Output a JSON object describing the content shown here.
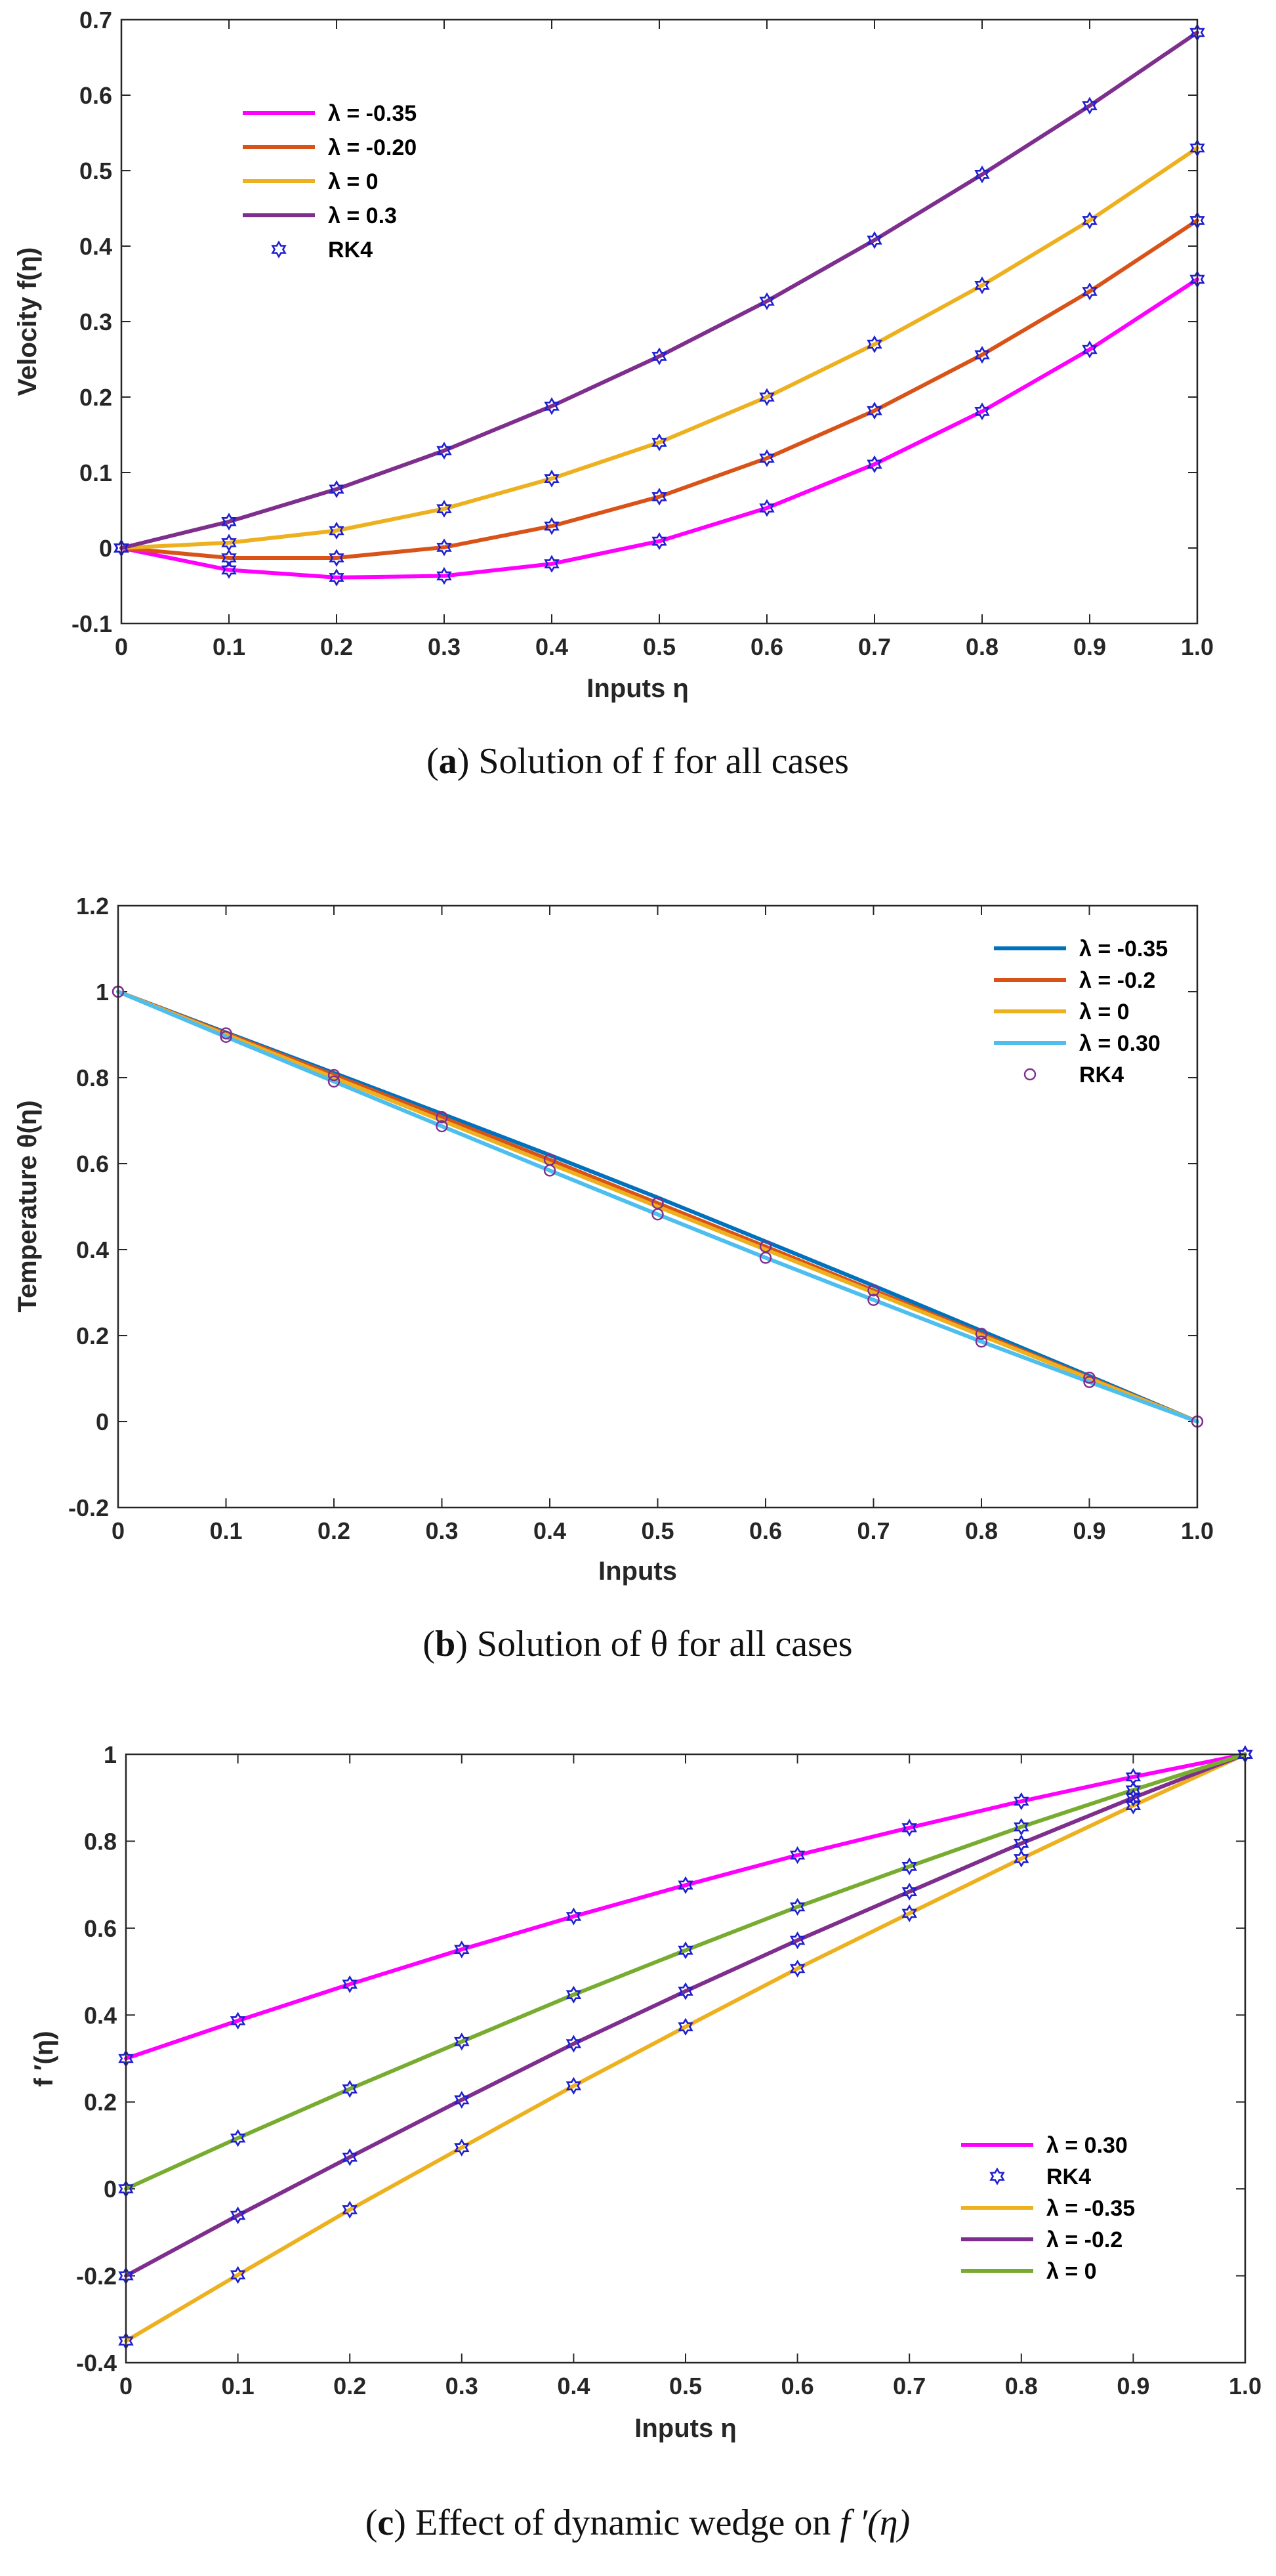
{
  "chart_data": [
    {
      "type": "line",
      "caption": {
        "tag": "a",
        "text": "Solution of f for all cases"
      },
      "xlabel": "Inputs η",
      "ylabel": "Velocity f(η)",
      "xlim": [
        0,
        1
      ],
      "ylim": [
        -0.1,
        0.7
      ],
      "x_ticks": [
        0,
        0.1,
        0.2,
        0.3,
        0.4,
        0.5,
        0.6,
        0.7,
        0.8,
        0.9,
        1.0
      ],
      "x_tick_labels": [
        "0",
        "0.1",
        "0.2",
        "0.3",
        "0.4",
        "0.5",
        "0.6",
        "0.7",
        "0.8",
        "0.9",
        "1.0"
      ],
      "y_ticks": [
        -0.1,
        0,
        0.1,
        0.2,
        0.3,
        0.4,
        0.5,
        0.6,
        0.7
      ],
      "y_tick_labels": [
        "-0.1",
        "0",
        "0.1",
        "0.2",
        "0.3",
        "0.4",
        "0.5",
        "0.6",
        "0.7"
      ],
      "x": [
        0,
        0.1,
        0.2,
        0.3,
        0.4,
        0.5,
        0.6,
        0.7,
        0.8,
        0.9,
        1.0
      ],
      "series": [
        {
          "name": "λ = -0.35",
          "color": "#ff00ff",
          "values": [
            0,
            -0.029,
            -0.039,
            -0.037,
            -0.021,
            0.009,
            0.053,
            0.111,
            0.181,
            0.263,
            0.356
          ]
        },
        {
          "name": "λ = -0.20",
          "color": "#d95319",
          "values": [
            0,
            -0.013,
            -0.013,
            0.001,
            0.029,
            0.068,
            0.119,
            0.182,
            0.256,
            0.34,
            0.434
          ]
        },
        {
          "name": "λ = 0",
          "color": "#edb120",
          "values": [
            0,
            0.007,
            0.023,
            0.052,
            0.092,
            0.14,
            0.2,
            0.27,
            0.348,
            0.434,
            0.53
          ]
        },
        {
          "name": "λ = 0.3",
          "color": "#7e2f8e",
          "values": [
            0,
            0.035,
            0.078,
            0.129,
            0.188,
            0.254,
            0.327,
            0.408,
            0.495,
            0.586,
            0.683
          ]
        }
      ],
      "markers": {
        "name": "RK4",
        "symbol": "hexagram",
        "color": "#1f1fd0",
        "on_series": [
          0,
          1,
          2,
          3
        ]
      },
      "legend": {
        "position": "top-left",
        "order": [
          0,
          1,
          2,
          3,
          "RK4"
        ]
      }
    },
    {
      "type": "line",
      "caption": {
        "tag": "b",
        "text": "Solution of θ for all cases"
      },
      "xlabel": "Inputs",
      "ylabel": "Temperature θ(η)",
      "xlim": [
        0,
        1
      ],
      "ylim": [
        -0.2,
        1.2
      ],
      "x_ticks": [
        0,
        0.1,
        0.2,
        0.3,
        0.4,
        0.5,
        0.6,
        0.7,
        0.8,
        0.9,
        1.0
      ],
      "x_tick_labels": [
        "0",
        "0.1",
        "0.2",
        "0.3",
        "0.4",
        "0.5",
        "0.6",
        "0.7",
        "0.8",
        "0.9",
        "1.0"
      ],
      "y_ticks": [
        -0.2,
        0,
        0.2,
        0.4,
        0.6,
        0.8,
        1,
        1.2
      ],
      "y_tick_labels": [
        "-0.2",
        "0",
        "0.2",
        "0.4",
        "0.6",
        "0.8",
        "1",
        "1.2"
      ],
      "x": [
        0,
        0.1,
        0.2,
        0.3,
        0.4,
        0.5,
        0.6,
        0.7,
        0.8,
        0.9,
        1.0
      ],
      "series": [
        {
          "name": "λ = -0.35",
          "color": "#0072bd",
          "values": [
            1,
            0.905,
            0.811,
            0.716,
            0.62,
            0.521,
            0.419,
            0.316,
            0.211,
            0.106,
            0
          ]
        },
        {
          "name": "λ = -0.2",
          "color": "#d95319",
          "values": [
            1,
            0.903,
            0.806,
            0.708,
            0.609,
            0.508,
            0.407,
            0.305,
            0.204,
            0.102,
            0
          ]
        },
        {
          "name": "λ = 0",
          "color": "#edb120",
          "values": [
            1,
            0.9,
            0.8,
            0.7,
            0.6,
            0.5,
            0.4,
            0.3,
            0.2,
            0.1,
            0
          ]
        },
        {
          "name": "λ = 0.30",
          "color": "#4dbeee",
          "values": [
            1,
            0.895,
            0.791,
            0.687,
            0.584,
            0.482,
            0.381,
            0.283,
            0.186,
            0.092,
            0
          ]
        }
      ],
      "markers": {
        "name": "RK4",
        "symbol": "circle",
        "color": "#7e2f8e",
        "on_series": [
          1,
          3
        ]
      },
      "legend": {
        "position": "top-right",
        "order": [
          0,
          1,
          2,
          3,
          "RK4"
        ]
      }
    },
    {
      "type": "line",
      "caption": {
        "tag": "c",
        "text": "Effect of dynamic wedge on",
        "math": "f ′(η)"
      },
      "xlabel": "Inputs η",
      "ylabel": "f ′(η)",
      "xlim": [
        0,
        1
      ],
      "ylim": [
        -0.4,
        1
      ],
      "x_ticks": [
        0,
        0.1,
        0.2,
        0.3,
        0.4,
        0.5,
        0.6,
        0.7,
        0.8,
        0.9,
        1.0
      ],
      "x_tick_labels": [
        "0",
        "0.1",
        "0.2",
        "0.3",
        "0.4",
        "0.5",
        "0.6",
        "0.7",
        "0.8",
        "0.9",
        "1.0"
      ],
      "y_ticks": [
        -0.4,
        -0.2,
        0,
        0.2,
        0.4,
        0.6,
        0.8,
        1
      ],
      "y_tick_labels": [
        "-0.4",
        "-0.2",
        "0",
        "0.2",
        "0.4",
        "0.6",
        "0.8",
        "1"
      ],
      "x": [
        0,
        0.1,
        0.2,
        0.3,
        0.4,
        0.5,
        0.6,
        0.7,
        0.8,
        0.9,
        1.0
      ],
      "series": [
        {
          "name": "λ = 0.30",
          "color": "#ff00ff",
          "values": [
            0.3,
            0.387,
            0.471,
            0.551,
            0.627,
            0.699,
            0.768,
            0.831,
            0.892,
            0.948,
            1.0
          ]
        },
        {
          "name": "λ = -0.35",
          "color": "#edb120",
          "values": [
            -0.35,
            -0.198,
            -0.048,
            0.095,
            0.237,
            0.373,
            0.507,
            0.634,
            0.76,
            0.882,
            1.0
          ]
        },
        {
          "name": "λ = -0.2",
          "color": "#7e2f8e",
          "values": [
            -0.2,
            -0.061,
            0.073,
            0.205,
            0.334,
            0.455,
            0.572,
            0.684,
            0.795,
            0.9,
            1.0
          ]
        },
        {
          "name": "λ = 0",
          "color": "#77ac30",
          "values": [
            0.0,
            0.117,
            0.23,
            0.339,
            0.447,
            0.549,
            0.649,
            0.742,
            0.833,
            0.918,
            1.0
          ]
        }
      ],
      "markers": {
        "name": "RK4",
        "symbol": "hexagram",
        "color": "#1f1fd0",
        "on_series": [
          0,
          1,
          2,
          3
        ]
      },
      "legend": {
        "position": "bottom-right",
        "order": [
          0,
          "RK4",
          1,
          2,
          3
        ]
      }
    }
  ]
}
